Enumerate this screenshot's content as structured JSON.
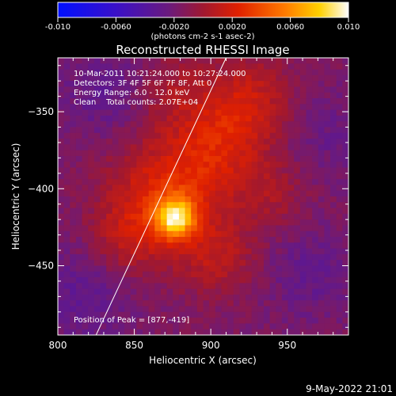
{
  "chart_data": {
    "type": "heatmap",
    "title": "Reconstructed RHESSI Image",
    "xlabel": "Heliocentric X (arcsec)",
    "ylabel": "Heliocentric Y (arcsec)",
    "xlim": [
      800,
      990
    ],
    "ylim": [
      -495,
      -315
    ],
    "x_ticks": [
      800,
      850,
      900,
      950
    ],
    "y_ticks": [
      -350,
      -400,
      -450
    ],
    "colorbar": {
      "min": -0.01,
      "max": 0.01,
      "ticks": [
        "-0.010",
        "-0.0060",
        "-0.0020",
        "0.0020",
        "0.0060",
        "0.010"
      ],
      "label": "(photons cm-2 s-1 asec-2)",
      "colormap": "blue-violet-red-yellow-white"
    },
    "annotations": [
      "10-Mar-2011 10:21:24.000 to 10:27:24.000",
      "Detectors: 3F 4F 5F 6F 7F 8F, Att 0",
      "Energy Range: 6.0 - 12.0 keV",
      "Clean    Total counts: 2.07E+04"
    ],
    "peak_label": "Position of Peak = [877,-419]",
    "peak": {
      "x": 877,
      "y": -419,
      "value": 0.01
    },
    "limb_line": [
      [
        825,
        -495
      ],
      [
        910,
        -315
      ]
    ],
    "sources": [
      {
        "x": 877,
        "y": -419,
        "sigma": 9,
        "amp": 0.008
      },
      {
        "x": 870,
        "y": -405,
        "sigma": 26,
        "amp": 0.004
      },
      {
        "x": 905,
        "y": -372,
        "sigma": 22,
        "amp": 0.003
      },
      {
        "x": 925,
        "y": -342,
        "sigma": 20,
        "amp": 0.0026
      },
      {
        "x": 905,
        "y": -445,
        "sigma": 18,
        "amp": 0.0022
      },
      {
        "x": 845,
        "y": -432,
        "sigma": 16,
        "amp": 0.0018
      },
      {
        "x": 940,
        "y": -405,
        "sigma": 16,
        "amp": 0.0016
      },
      {
        "x": 875,
        "y": -335,
        "sigma": 18,
        "amp": 0.0016
      },
      {
        "x": 832,
        "y": -338,
        "sigma": 20,
        "amp": -0.0015
      },
      {
        "x": 815,
        "y": -470,
        "sigma": 22,
        "amp": -0.0014
      },
      {
        "x": 965,
        "y": -455,
        "sigma": 20,
        "amp": -0.0013
      },
      {
        "x": 975,
        "y": -365,
        "sigma": 18,
        "amp": -0.001
      }
    ]
  },
  "footer": {
    "date": "9-May-2022 21:01"
  }
}
